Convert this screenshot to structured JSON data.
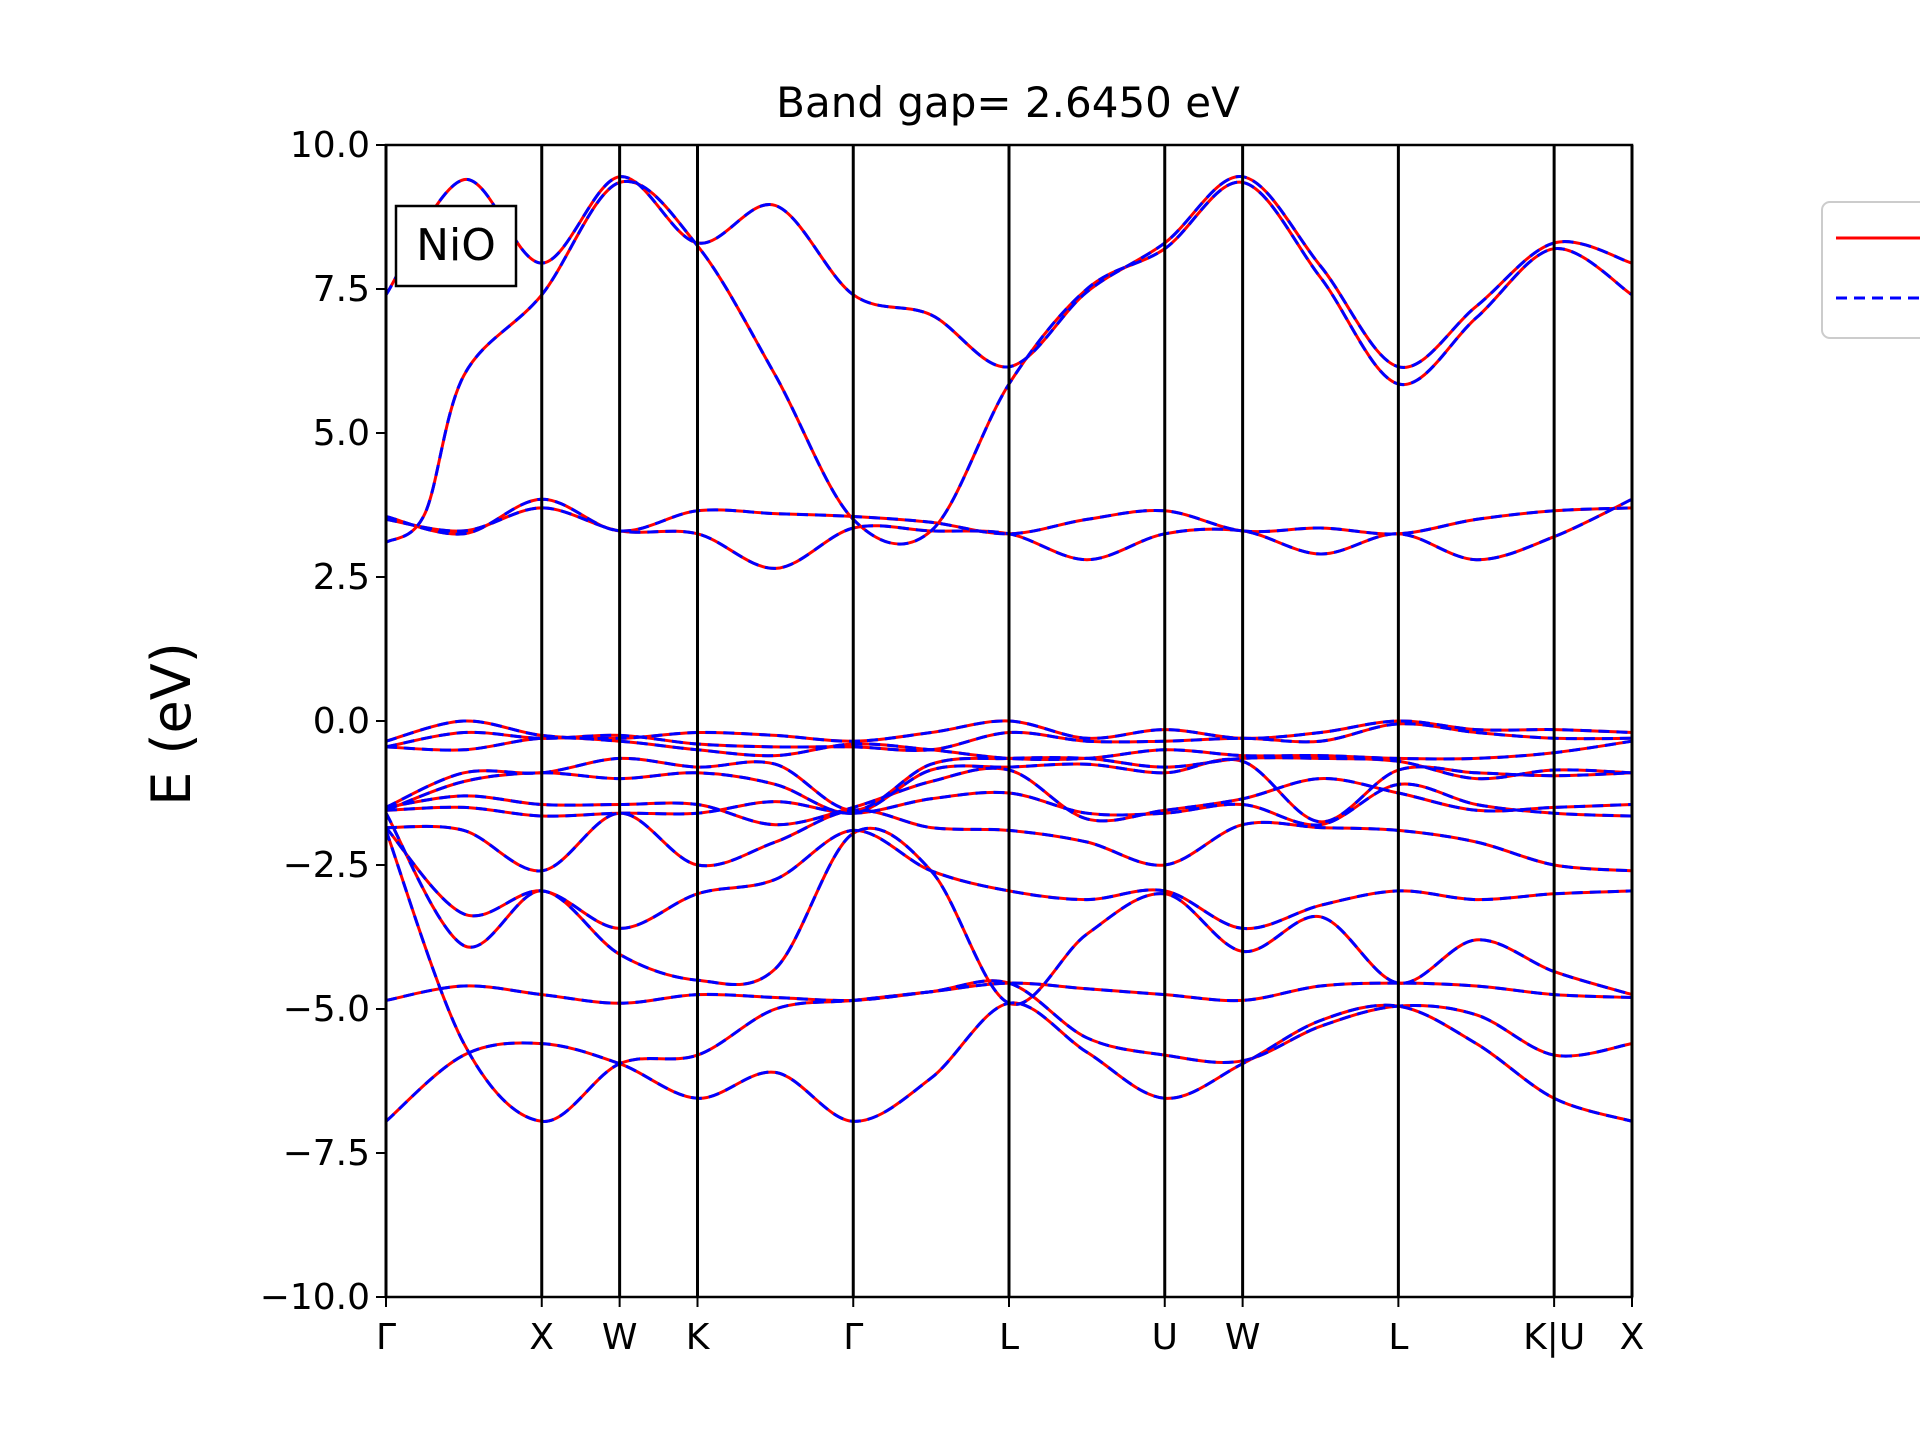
{
  "chart_data": {
    "type": "line",
    "title": "Band gap= 2.6450 eV",
    "xlabel": "",
    "ylabel": "E (eV)",
    "ylim": [
      -10,
      10
    ],
    "yticks": [
      "10.0",
      "7.5",
      "5.0",
      "2.5",
      "0.0",
      "−2.5",
      "−5.0",
      "−7.5",
      "−10.0"
    ],
    "yticks_values": [
      10,
      7.5,
      5,
      2.5,
      0,
      -2.5,
      -5,
      -7.5,
      -10
    ],
    "xlim": [
      0,
      8
    ],
    "kpath": [
      {
        "label": "Γ",
        "x": 0
      },
      {
        "label": "X",
        "x": 1
      },
      {
        "label": "W",
        "x": 1.5
      },
      {
        "label": "K",
        "x": 2
      },
      {
        "label": "Γ",
        "x": 3
      },
      {
        "label": "L",
        "x": 4
      },
      {
        "label": "U",
        "x": 5
      },
      {
        "label": "W",
        "x": 5.5
      },
      {
        "label": "L",
        "x": 6.5
      },
      {
        "label": "K|U",
        "x": 7.5
      },
      {
        "label": "X",
        "x": 8
      }
    ],
    "annotation": "NiO",
    "grid": false,
    "legend_placement": "right-outside",
    "series": [
      {
        "color": "#ff0000",
        "style": "solid",
        "bands": [
          {
            "x": [
              0,
              0.5,
              1,
              1.5,
              2,
              2.5,
              3,
              3.5,
              4,
              4.5,
              5,
              5.5,
              6,
              6.5,
              7,
              7.5,
              8
            ],
            "y": [
              -6.95,
              -5.8,
              -5.6,
              -5.95,
              -6.55,
              -6.1,
              -6.95,
              -6.2,
              -4.9,
              -5.75,
              -6.55,
              -5.95,
              -5.2,
              -4.95,
              -5.6,
              -6.55,
              -6.95
            ]
          },
          {
            "x": [
              0,
              0.5,
              1,
              1.5,
              2,
              2.5,
              3,
              3.5,
              4,
              4.5,
              5,
              5.5,
              6,
              6.5,
              7,
              7.5,
              8
            ],
            "y": [
              -1.9,
              -5.6,
              -6.95,
              -5.95,
              -5.8,
              -5.0,
              -4.85,
              -4.7,
              -4.55,
              -5.5,
              -5.8,
              -5.9,
              -5.3,
              -4.95,
              -5.1,
              -5.8,
              -5.6
            ]
          },
          {
            "x": [
              0,
              0.5,
              1,
              1.5,
              2,
              2.5,
              3,
              3.5,
              4,
              4.5,
              5,
              5.5,
              6,
              6.5,
              7,
              7.5,
              8
            ],
            "y": [
              -4.85,
              -4.6,
              -4.75,
              -4.9,
              -4.75,
              -4.8,
              -4.85,
              -4.7,
              -4.55,
              -4.65,
              -4.75,
              -4.85,
              -4.6,
              -4.55,
              -4.6,
              -4.75,
              -4.8
            ]
          },
          {
            "x": [
              0,
              0.5,
              1,
              1.5,
              2,
              2.5,
              3,
              3.5,
              4,
              4.5,
              5,
              5.5,
              6,
              6.5,
              7,
              7.5,
              8
            ],
            "y": [
              -1.85,
              -3.35,
              -2.95,
              -3.6,
              -3.0,
              -2.75,
              -1.9,
              -2.6,
              -2.95,
              -3.1,
              -2.95,
              -3.6,
              -3.2,
              -2.95,
              -3.1,
              -3.0,
              -2.95
            ]
          },
          {
            "x": [
              0,
              0.5,
              1,
              1.5,
              2,
              2.5,
              3,
              3.5,
              4,
              4.5,
              5,
              5.5,
              6,
              6.5,
              7,
              7.5,
              8
            ],
            "y": [
              -1.6,
              -3.9,
              -2.95,
              -4.05,
              -4.5,
              -4.3,
              -1.95,
              -2.6,
              -4.9,
              -3.7,
              -3.0,
              -4.0,
              -3.4,
              -4.55,
              -3.8,
              -4.35,
              -4.75
            ]
          },
          {
            "x": [
              0,
              0.5,
              1,
              1.5,
              2,
              2.5,
              3,
              3.5,
              4,
              4.5,
              5,
              5.5,
              6,
              6.5,
              7,
              7.5,
              8
            ],
            "y": [
              -1.85,
              -1.9,
              -2.6,
              -1.6,
              -2.5,
              -2.1,
              -1.55,
              -1.85,
              -1.9,
              -2.1,
              -2.5,
              -1.8,
              -1.85,
              -1.9,
              -2.1,
              -2.5,
              -2.6
            ]
          },
          {
            "x": [
              0,
              0.5,
              1,
              1.5,
              2,
              2.5,
              3,
              3.5,
              4,
              4.5,
              5,
              5.5,
              6,
              6.5,
              7,
              7.5,
              8
            ],
            "y": [
              -1.55,
              -1.5,
              -1.65,
              -1.6,
              -1.6,
              -1.4,
              -1.6,
              -1.35,
              -1.25,
              -1.6,
              -1.6,
              -1.45,
              -1.8,
              -1.1,
              -1.45,
              -1.6,
              -1.65
            ]
          },
          {
            "x": [
              0,
              0.5,
              1,
              1.5,
              2,
              2.5,
              3,
              3.5,
              4,
              4.5,
              5,
              5.5,
              6,
              6.5,
              7,
              7.5,
              8
            ],
            "y": [
              -1.5,
              -1.3,
              -1.45,
              -1.45,
              -1.45,
              -1.8,
              -1.5,
              -1.05,
              -0.85,
              -1.7,
              -1.55,
              -1.35,
              -1.0,
              -1.25,
              -1.55,
              -1.5,
              -1.45
            ]
          },
          {
            "x": [
              0,
              0.5,
              1,
              1.5,
              2,
              2.5,
              3,
              3.5,
              4,
              4.5,
              5,
              5.5,
              6,
              6.5,
              7,
              7.5,
              8
            ],
            "y": [
              -1.55,
              -1.05,
              -0.9,
              -1.0,
              -0.9,
              -1.1,
              -1.6,
              -0.85,
              -0.8,
              -0.75,
              -0.9,
              -0.7,
              -1.75,
              -0.85,
              -0.9,
              -0.95,
              -0.9
            ]
          },
          {
            "x": [
              0,
              0.5,
              1,
              1.5,
              2,
              2.5,
              3,
              3.5,
              4,
              4.5,
              5,
              5.5,
              6,
              6.5,
              7,
              7.5,
              8
            ],
            "y": [
              -1.5,
              -0.9,
              -0.9,
              -0.65,
              -0.8,
              -0.75,
              -1.55,
              -0.75,
              -0.65,
              -0.65,
              -0.8,
              -0.65,
              -0.65,
              -0.7,
              -1.0,
              -0.85,
              -0.9
            ]
          },
          {
            "x": [
              0,
              0.5,
              1,
              1.5,
              2,
              2.5,
              3,
              3.5,
              4,
              4.5,
              5,
              5.5,
              6,
              6.5,
              7,
              7.5,
              8
            ],
            "y": [
              -0.45,
              -0.5,
              -0.3,
              -0.35,
              -0.5,
              -0.6,
              -0.4,
              -0.5,
              -0.65,
              -0.65,
              -0.5,
              -0.6,
              -0.6,
              -0.65,
              -0.65,
              -0.55,
              -0.35
            ]
          },
          {
            "x": [
              0,
              0.5,
              1,
              1.5,
              2,
              2.5,
              3,
              3.5,
              4,
              4.5,
              5,
              5.5,
              6,
              6.5,
              7,
              7.5,
              8
            ],
            "y": [
              -0.45,
              -0.2,
              -0.3,
              -0.25,
              -0.4,
              -0.45,
              -0.45,
              -0.5,
              -0.2,
              -0.35,
              -0.35,
              -0.3,
              -0.35,
              -0.05,
              -0.2,
              -0.3,
              -0.3
            ]
          },
          {
            "x": [
              0,
              0.5,
              1,
              1.5,
              2,
              2.5,
              3,
              3.5,
              4,
              4.5,
              5,
              5.5,
              6,
              6.5,
              7,
              7.5,
              8
            ],
            "y": [
              -0.35,
              0.0,
              -0.25,
              -0.3,
              -0.2,
              -0.25,
              -0.35,
              -0.2,
              0.0,
              -0.3,
              -0.15,
              -0.3,
              -0.2,
              0.0,
              -0.15,
              -0.15,
              -0.2
            ]
          },
          {
            "x": [
              0,
              0.5,
              1,
              1.5,
              2,
              2.5,
              3,
              3.5,
              4,
              4.5,
              5,
              5.5,
              6,
              6.5,
              7,
              7.5,
              8
            ],
            "y": [
              3.5,
              3.3,
              3.7,
              3.3,
              3.25,
              2.65,
              3.35,
              3.3,
              3.25,
              2.8,
              3.25,
              3.3,
              2.9,
              3.25,
              2.8,
              3.2,
              3.85
            ]
          },
          {
            "x": [
              0,
              0.5,
              1,
              1.5,
              2,
              2.5,
              3,
              3.5,
              4,
              4.5,
              5,
              5.5,
              6,
              6.5,
              7,
              7.5,
              8
            ],
            "y": [
              3.55,
              3.25,
              3.85,
              3.3,
              3.65,
              3.6,
              3.55,
              3.45,
              3.25,
              3.5,
              3.65,
              3.3,
              3.35,
              3.25,
              3.5,
              3.65,
              3.7
            ]
          },
          {
            "x": [
              0,
              0.25,
              0.5,
              1,
              1.5,
              2,
              2.5,
              3,
              3.5,
              4,
              4.5,
              5,
              5.5,
              6,
              6.5,
              7,
              7.5,
              8
            ],
            "y": [
              3.1,
              3.6,
              6.0,
              7.4,
              9.35,
              8.25,
              6.0,
              3.5,
              3.3,
              5.85,
              7.5,
              8.2,
              9.35,
              7.7,
              5.85,
              7.0,
              8.2,
              7.4
            ]
          },
          {
            "x": [
              0,
              0.5,
              1,
              1.5,
              2,
              2.5,
              3,
              3.5,
              4,
              4.5,
              5,
              5.5,
              6,
              6.5,
              7,
              7.5,
              8
            ],
            "y": [
              7.4,
              9.4,
              7.95,
              9.45,
              8.3,
              8.95,
              7.4,
              7.05,
              6.15,
              7.45,
              8.3,
              9.45,
              7.9,
              6.15,
              7.2,
              8.3,
              7.95
            ]
          }
        ]
      },
      {
        "color": "#0000ff",
        "style": "dashed",
        "same_as_series": 0
      }
    ]
  }
}
